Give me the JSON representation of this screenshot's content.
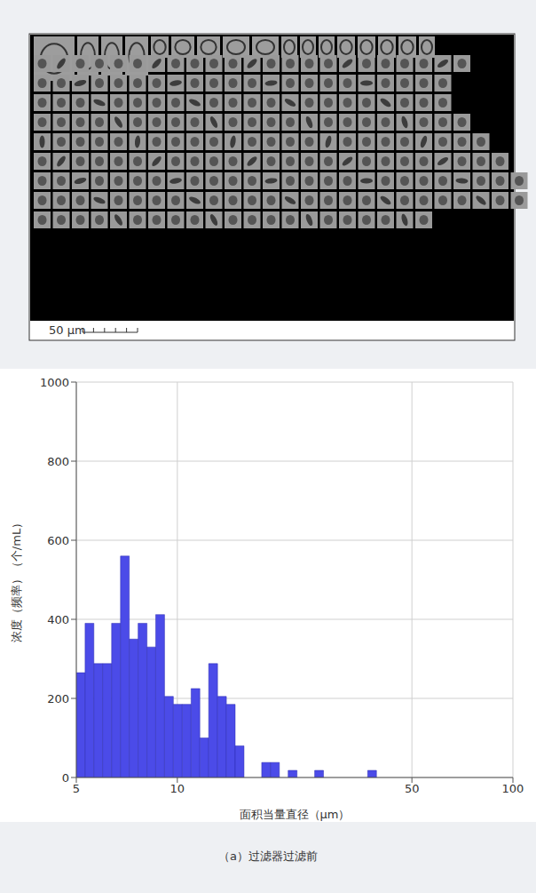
{
  "particle_image": {
    "scale_bar_label": "50 µm"
  },
  "chart_data": {
    "type": "histogram",
    "title": "（a）过滤器过滤前",
    "x_label": "面积当量直径（µm）",
    "y_label": "浓度（频率）（个/mL）",
    "bins": [
      5.0,
      5.31,
      5.64,
      5.99,
      6.37,
      6.77,
      7.19,
      7.64,
      8.12,
      8.62,
      9.16,
      9.73,
      10.34,
      10.99,
      11.67,
      12.4,
      13.18,
      14.0,
      14.87,
      15.8,
      16.79,
      17.84,
      18.95,
      20.14,
      21.39,
      22.73,
      24.15,
      25.66,
      27.26,
      28.96,
      30.77,
      32.69,
      34.74,
      36.91,
      39.21
    ],
    "counts": [
      265,
      390,
      288,
      288,
      390,
      560,
      350,
      390,
      330,
      412,
      205,
      185,
      185,
      225,
      100,
      288,
      205,
      185,
      80,
      0,
      0,
      38,
      38,
      0,
      18,
      0,
      0,
      18,
      0,
      0,
      0,
      0,
      0,
      18
    ],
    "color": "#4b4be8",
    "log": "x",
    "xlim": [
      5,
      100
    ],
    "xticks": [
      5,
      10,
      50,
      100
    ],
    "ylim": [
      0,
      1000
    ],
    "yticks": [
      0,
      200,
      400,
      600,
      800,
      1000
    ],
    "grid": true
  }
}
